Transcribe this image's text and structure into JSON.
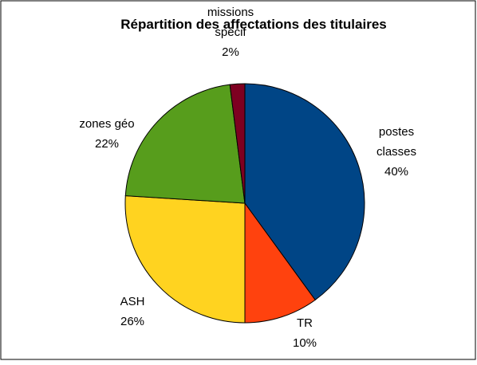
{
  "chart_data": {
    "type": "pie",
    "title": "Répartition des affectations des titulaires",
    "categories": [
      "postes\nclasses",
      "TR",
      "ASH",
      "zones géo",
      "missions\nspécif"
    ],
    "values": [
      40,
      10,
      26,
      22,
      2
    ],
    "value_labels": [
      "40%",
      "10%",
      "26%",
      "22%",
      "2%"
    ],
    "colors": [
      "#004586",
      "#ff420e",
      "#ffd320",
      "#579d1c",
      "#7e0021"
    ]
  }
}
